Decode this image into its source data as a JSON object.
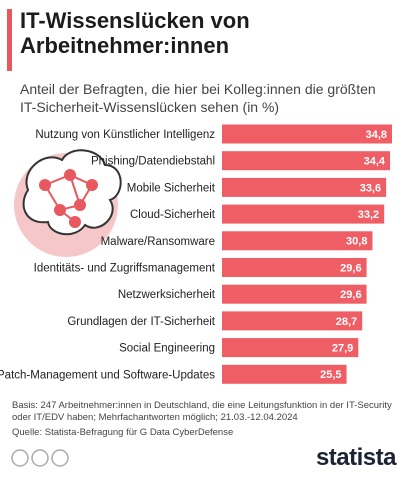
{
  "chart_data": {
    "type": "bar",
    "title": "IT-Wissenslücken von Arbeitnehmer:innen",
    "subtitle": "Anteil der Befragten, die hier bei Kolleg:innen die größten IT-Sicherheit-Wissenslücken sehen (in %)",
    "categories": [
      "Nutzung von Künstlicher Intelligenz",
      "Phishing/Datendiebstahl",
      "Mobile Sicherheit",
      "Cloud-Sicherheit",
      "Malware/Ransomware",
      "Identitäts- und Zugriffsmanagement",
      "Netzwerksicherheit",
      "Grundlagen der IT-Sicherheit",
      "Social Engineering",
      "Patch-Management und Software-Updates"
    ],
    "values": [
      34.8,
      34.4,
      33.6,
      33.2,
      30.8,
      29.6,
      29.6,
      28.7,
      27.9,
      25.5
    ],
    "value_labels": [
      "34,8",
      "34,4",
      "33,6",
      "33,2",
      "30,8",
      "29,6",
      "29,6",
      "28,7",
      "27,9",
      "25,5"
    ],
    "color": "#ef5e64",
    "note": "Basis: 247 Arbeitnehmer:innen in Deutschland, die eine Leitungsfunktion in der IT-Security oder IT/EDV haben; Mehrfachantworten möglich; 21.03.-12.04.2024",
    "source": "Quelle: Statista-Befragung für G Data CyberDefense",
    "logo": "statista"
  }
}
